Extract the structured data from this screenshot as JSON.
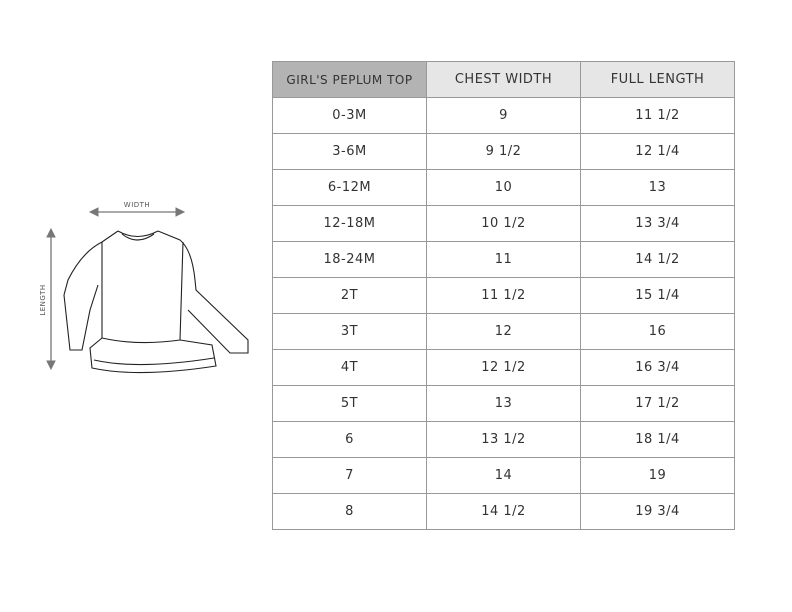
{
  "diagram": {
    "width_label": "WIDTH",
    "length_label": "LENGTH"
  },
  "table": {
    "headers": [
      "GIRL'S PEPLUM TOP",
      "CHEST WIDTH",
      "FULL LENGTH"
    ],
    "rows": [
      [
        "0-3M",
        "9",
        "11 1/2"
      ],
      [
        "3-6M",
        "9 1/2",
        "12 1/4"
      ],
      [
        "6-12M",
        "10",
        "13"
      ],
      [
        "12-18M",
        "10 1/2",
        "13 3/4"
      ],
      [
        "18-24M",
        "11",
        "14 1/2"
      ],
      [
        "2T",
        "11 1/2",
        "15 1/4"
      ],
      [
        "3T",
        "12",
        "16"
      ],
      [
        "4T",
        "12 1/2",
        "16 3/4"
      ],
      [
        "5T",
        "13",
        "17 1/2"
      ],
      [
        "6",
        "13 1/2",
        "18 1/4"
      ],
      [
        "7",
        "14",
        "19"
      ],
      [
        "8",
        "14 1/2",
        "19 3/4"
      ]
    ]
  },
  "colors": {
    "header_first": "#b3b3b3",
    "header": "#e6e6e6",
    "border": "#999999"
  }
}
